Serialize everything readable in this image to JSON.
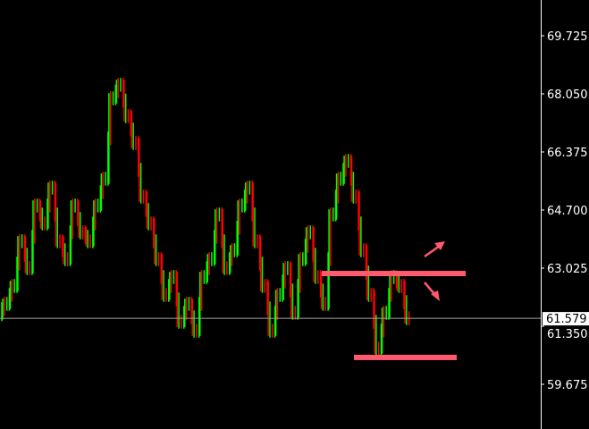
{
  "chart_data": {
    "type": "bar",
    "subtype": "ohlc-price-chart",
    "colors": {
      "up": "#00ff00",
      "down": "#ff0000",
      "background": "#000000",
      "axis": "#ffffff",
      "annotation": "#ff5a6e",
      "current_line": "#a0a0a0"
    },
    "y_ticks": [
      "69.725",
      "68.050",
      "66.375",
      "64.700",
      "63.025",
      "61.350",
      "59.675"
    ],
    "ylim": [
      59.0,
      71.0
    ],
    "current_price": "61.579",
    "closes": [
      61.994,
      62.51,
      63.798,
      63.025,
      64.829,
      64.314,
      65.344,
      63.798,
      63.283,
      64.829,
      64.056,
      63.798,
      64.829,
      65.602,
      67.921,
      68.308,
      67.406,
      66.633,
      65.087,
      64.314,
      63.283,
      62.252,
      62.767,
      61.479,
      61.994,
      61.221,
      62.767,
      63.283,
      64.571,
      63.025,
      63.54,
      64.829,
      65.344,
      63.798,
      62.51,
      61.221,
      62.252,
      63.025,
      61.737,
      63.283,
      64.056,
      62.767,
      61.994,
      64.571,
      65.602,
      66.117,
      65.087,
      63.54,
      62.252,
      60.706,
      61.737,
      62.767,
      62.51,
      61.579
    ],
    "annotations": {
      "resistance_level": 62.87,
      "support_level": 60.45,
      "arrows": [
        "up",
        "down"
      ]
    },
    "grid": false
  }
}
